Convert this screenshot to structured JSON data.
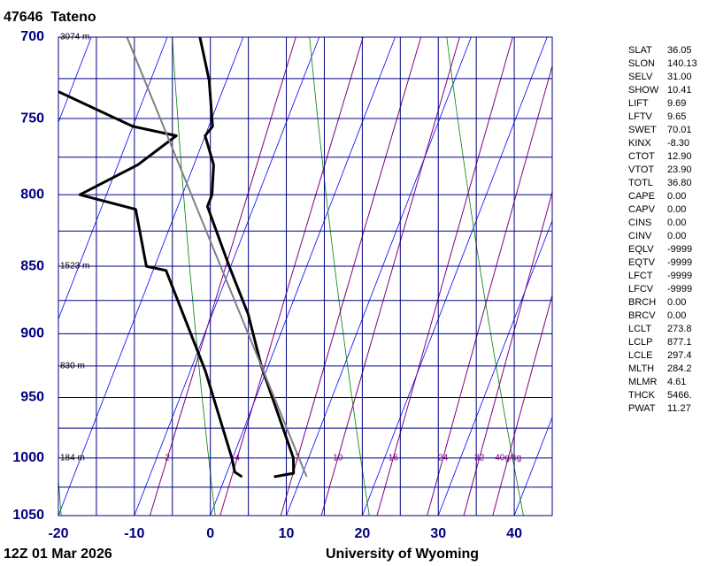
{
  "chart_data": {
    "type": "skewt",
    "title": "47646  Tateno",
    "plim": [
      1050,
      700
    ],
    "xlim": [
      -20,
      45
    ],
    "yticks": [
      700,
      750,
      800,
      850,
      900,
      950,
      1000,
      1050
    ],
    "ygrid": [
      725,
      775,
      825,
      875,
      925,
      975,
      1025
    ],
    "xticks": [
      -20,
      -10,
      0,
      10,
      20,
      30,
      40
    ],
    "xgrid": [
      -15,
      -5,
      5,
      15,
      25,
      35
    ],
    "isotherms": [
      -40,
      -30,
      -20,
      -10,
      0,
      10,
      20,
      30,
      40
    ],
    "dry_adiabats": [
      250,
      270,
      290,
      310,
      330
    ],
    "mixing_ratios": [
      2,
      4,
      7,
      10,
      16,
      24,
      32,
      {
        "value": 40,
        "label": "40g/kg"
      }
    ],
    "height_labels": [
      {
        "pressure": 700,
        "label": "3074 m"
      },
      {
        "pressure": 850,
        "label": "1523 m"
      },
      {
        "pressure": 925,
        "label": "830 m"
      },
      {
        "pressure": 1000,
        "label": "184 m"
      }
    ],
    "series": [
      {
        "color": "#000000",
        "pressure": [
          1016,
          1013,
          1000,
          925,
          885,
          850,
          808,
          800,
          780,
          761,
          755,
          726,
          700
        ],
        "values": [
          6.4,
          8.8,
          8.0,
          -0.9,
          -5.3,
          -10.2,
          -16.1,
          -16.1,
          -17.4,
          -20.0,
          -19.5,
          -22.3,
          -25.7
        ]
      },
      {
        "color": "#000000",
        "pressure": [
          1016,
          1012,
          1000,
          929,
          853,
          850,
          810,
          800,
          780,
          761,
          755,
          733
        ],
        "values": [
          2.2,
          1.0,
          -0.1,
          -8.0,
          -18.3,
          -21.1,
          -25.4,
          -33.5,
          -27.4,
          -23.8,
          -30.0,
          -41.6
        ]
      },
      {
        "color": "#808080",
        "pressure": [
          1016,
          700
        ],
        "values": [
          10.7,
          -35.3
        ]
      }
    ]
  },
  "footer": {
    "time": "12Z 01 Mar 2026",
    "source": "University of Wyoming"
  },
  "indices": {
    "rows": [
      [
        "SLAT",
        "36.05"
      ],
      [
        "SLON",
        "140.13"
      ],
      [
        "SELV",
        "31.00"
      ],
      [
        "SHOW",
        "10.41"
      ],
      [
        "LIFT",
        "9.69"
      ],
      [
        "LFTV",
        "9.65"
      ],
      [
        "SWET",
        "70.01"
      ],
      [
        "KINX",
        "-8.30"
      ],
      [
        "CTOT",
        "12.90"
      ],
      [
        "VTOT",
        "23.90"
      ],
      [
        "TOTL",
        "36.80"
      ],
      [
        "CAPE",
        "0.00"
      ],
      [
        "CAPV",
        "0.00"
      ],
      [
        "CINS",
        "0.00"
      ],
      [
        "CINV",
        "0.00"
      ],
      [
        "EQLV",
        "-9999"
      ],
      [
        "EQTV",
        "-9999"
      ],
      [
        "LFCT",
        "-9999"
      ],
      [
        "LFCV",
        "-9999"
      ],
      [
        "BRCH",
        "0.00"
      ],
      [
        "BRCV",
        "0.00"
      ],
      [
        "LCLT",
        "273.8"
      ],
      [
        "LCLP",
        "877.1"
      ],
      [
        "LCLE",
        "297.4"
      ],
      [
        "MLTH",
        "284.2"
      ],
      [
        "MLMR",
        "4.61"
      ],
      [
        "THCK",
        "5466."
      ],
      [
        "PWAT",
        "11.27"
      ]
    ]
  }
}
